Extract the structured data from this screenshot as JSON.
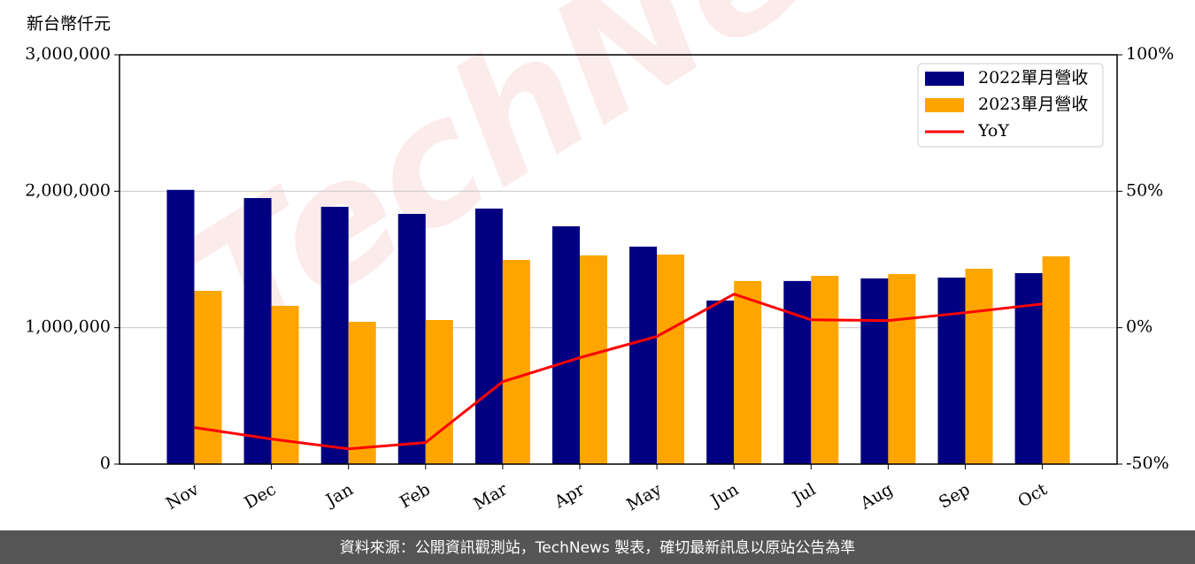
{
  "chart_data": {
    "type": "bar",
    "y_unit_label": "新台幣仟元",
    "watermark": "TechNews",
    "footer": "資料來源：公開資訊觀測站，TechNews 製表，確切最新訊息以原站公告為準",
    "categories": [
      "Nov",
      "Dec",
      "Jan",
      "Feb",
      "Mar",
      "Apr",
      "May",
      "Jun",
      "Jul",
      "Aug",
      "Sep",
      "Oct"
    ],
    "series": [
      {
        "name": "2022單月營收",
        "color": "#000080",
        "type": "bar",
        "values": [
          2010000,
          1950000,
          1886000,
          1834000,
          1873000,
          1743000,
          1594000,
          1199000,
          1342000,
          1361000,
          1367000,
          1400000
        ]
      },
      {
        "name": "2023單月營收",
        "color": "#ffa500",
        "type": "bar",
        "values": [
          1270000,
          1160000,
          1043000,
          1056000,
          1497000,
          1530000,
          1536000,
          1342000,
          1380000,
          1393000,
          1432000,
          1523000
        ]
      },
      {
        "name": "YoY",
        "color": "#ff0000",
        "type": "line",
        "axis": "y2",
        "values": [
          -36.6,
          -40.8,
          -44.4,
          -42.1,
          -19.8,
          -11.0,
          -3.2,
          12.3,
          2.9,
          2.6,
          5.5,
          8.7
        ]
      }
    ],
    "ylim": [
      0,
      3000000
    ],
    "yticks": [
      0,
      {
        "value": 1000000,
        "label": "1,000,000"
      },
      {
        "value": 2000000,
        "label": "2,000,000"
      },
      {
        "value": 3000000,
        "label": "3,000,000"
      }
    ],
    "y2lim": [
      -50,
      100
    ],
    "y2ticks": [
      {
        "value": -50,
        "label": "-50%"
      },
      {
        "value": 0,
        "label": "0%"
      },
      {
        "value": 50,
        "label": "50%"
      },
      {
        "value": 100,
        "label": "100%"
      }
    ],
    "grid": true,
    "legend": "upper right"
  }
}
